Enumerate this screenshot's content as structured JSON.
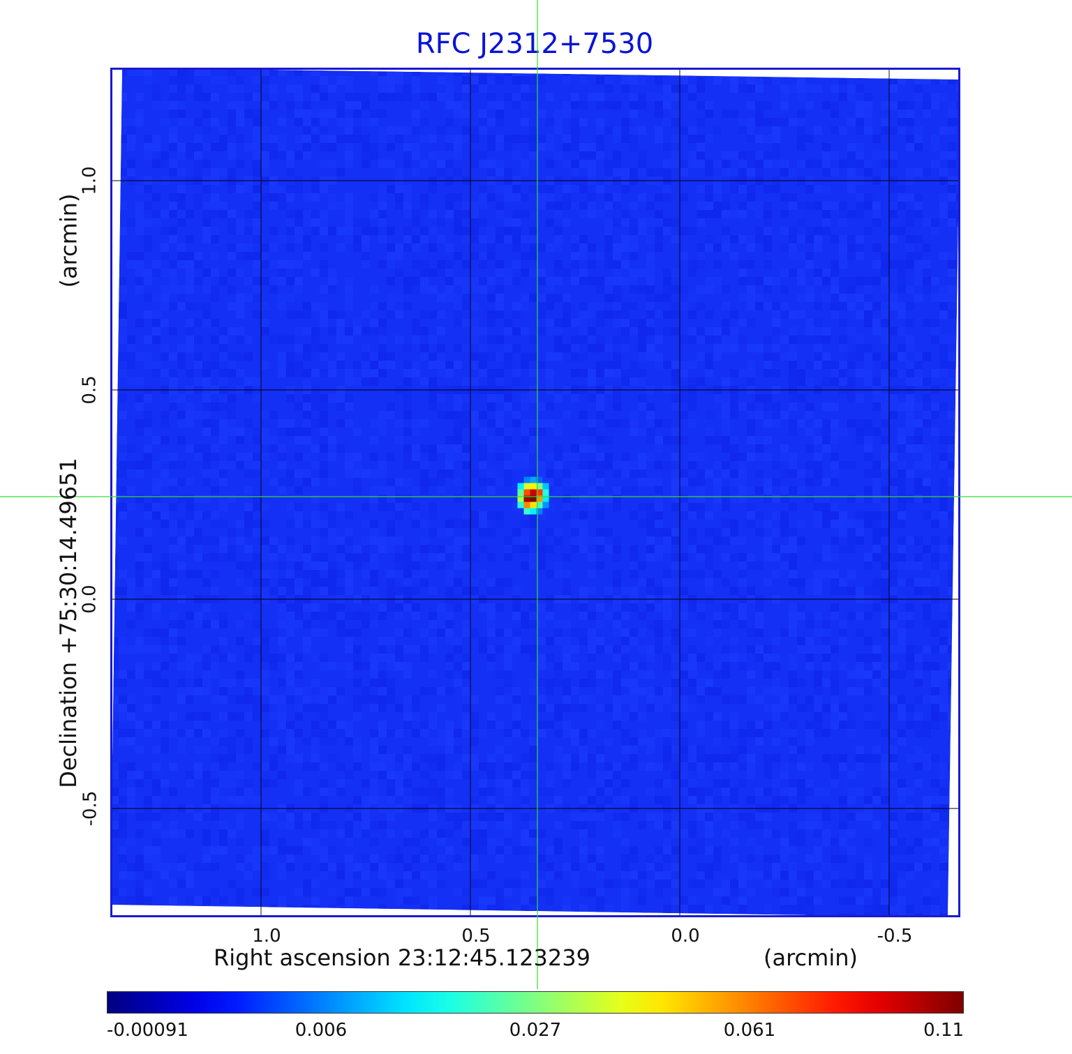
{
  "chart_data": {
    "type": "heatmap",
    "title": "RFC J2312+7530",
    "xlabel": "Right ascension  23:12:45.123239",
    "xunit": "(arcmin)",
    "ylabel": "Declination  +75:30:14.49651",
    "yunit": "(arcmin)",
    "xlim": [
      1.36,
      -0.67
    ],
    "ylim": [
      -0.76,
      1.27
    ],
    "x_ticks": [
      1.0,
      0.5,
      0.0,
      -0.5
    ],
    "x_tick_labels": [
      "1.0",
      "0.5",
      "0.0",
      "-0.5"
    ],
    "y_ticks": [
      1.0,
      0.5,
      0.0,
      -0.5
    ],
    "y_tick_labels": [
      "1.0",
      "0.5",
      "0.0",
      "-0.5"
    ],
    "grid": true,
    "source_peak": {
      "ra_offset_arcmin": 0.35,
      "dec_offset_arcmin": 0.24,
      "peak_value": 0.11
    },
    "crosshair": {
      "ra_offset_arcmin": 0.34,
      "dec_offset_arcmin": 0.245
    },
    "colorbar": {
      "colormap": "jet",
      "tick_labels": [
        "-0.00091",
        "0.006",
        "0.027",
        "0.061",
        "0.11"
      ],
      "min": -0.00091,
      "max": 0.11
    },
    "colors": {
      "title": "#0a14d2",
      "frame": "#1a1ad0",
      "background_field": "#1430f5",
      "grid": "#000000",
      "crosshair": "#2fe02f"
    }
  }
}
